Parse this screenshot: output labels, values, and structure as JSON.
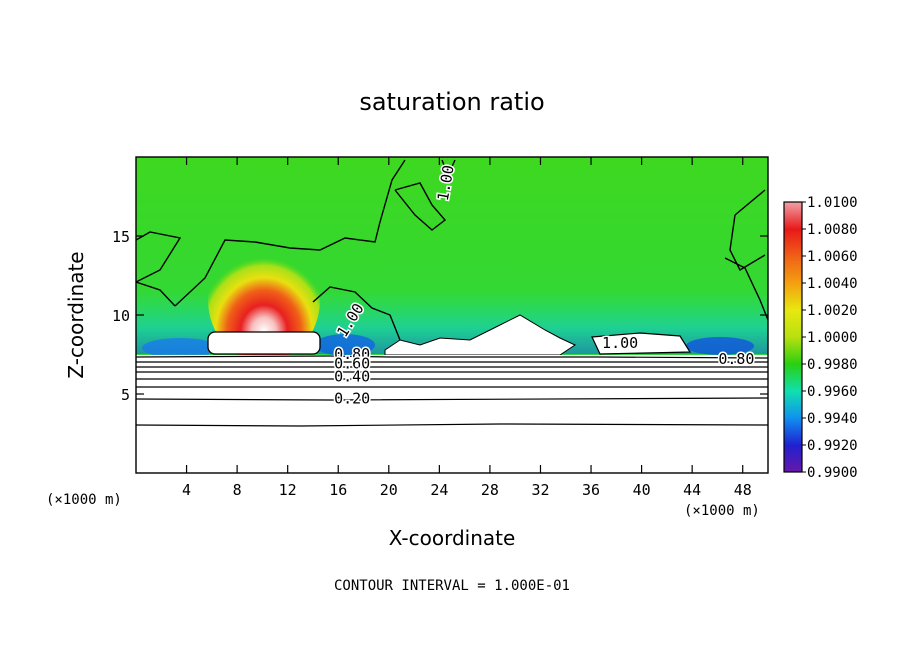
{
  "chart_data": {
    "type": "heatmap",
    "title": "saturation ratio",
    "xlabel": "X-coordinate",
    "ylabel": "Z-coordinate",
    "x_unit_left": "(×1000 m)",
    "x_unit_right": "(×1000 m)",
    "xlim": [
      0,
      50
    ],
    "ylim": [
      0,
      20
    ],
    "x_ticks": [
      "4",
      "8",
      "12",
      "16",
      "20",
      "24",
      "28",
      "32",
      "36",
      "40",
      "44",
      "48"
    ],
    "x_tick_values": [
      4,
      8,
      12,
      16,
      20,
      24,
      28,
      32,
      36,
      40,
      44,
      48
    ],
    "y_ticks": [
      "5",
      "10",
      "15"
    ],
    "y_tick_values": [
      5,
      10,
      15
    ],
    "colorbar": {
      "labels": [
        "1.0100",
        "1.0080",
        "1.0060",
        "1.0040",
        "1.0020",
        "1.0000",
        "0.9980",
        "0.9960",
        "0.9940",
        "0.9920",
        "0.9900"
      ],
      "colors": [
        "#f0a0a8",
        "#e81818",
        "#f06018",
        "#f4a010",
        "#e8e810",
        "#b8e010",
        "#28d010",
        "#10e0b0",
        "#1090f0",
        "#2020d0",
        "#6818a8"
      ]
    },
    "contour_labels": [
      {
        "text": "1.00",
        "x": 24.9,
        "y": 18.3,
        "rotate": -80
      },
      {
        "text": "1.00",
        "x": 17.3,
        "y": 9.5,
        "rotate": -58
      },
      {
        "text": "1.00",
        "x": 38.3,
        "y": 7.9,
        "rotate": 0
      },
      {
        "text": "0.80",
        "x": 17.1,
        "y": 7.2,
        "rotate": 0
      },
      {
        "text": "0.60",
        "x": 17.1,
        "y": 6.6,
        "rotate": 0
      },
      {
        "text": "0.40",
        "x": 17.1,
        "y": 5.8,
        "rotate": 0
      },
      {
        "text": "0.20",
        "x": 17.1,
        "y": 4.4,
        "rotate": 0
      },
      {
        "text": "0.80",
        "x": 47.5,
        "y": 6.9,
        "rotate": 0
      }
    ],
    "contour_interval": "CONTOUR INTERVAL = 1.000E-01",
    "grid": false
  }
}
